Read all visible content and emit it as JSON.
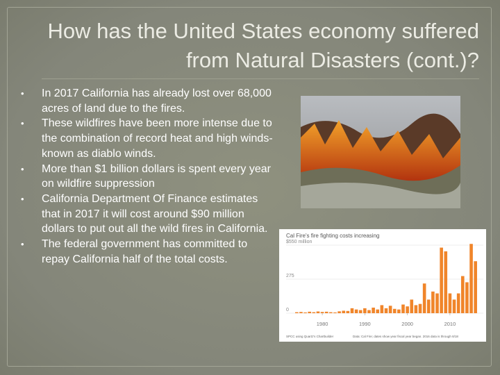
{
  "header": {
    "title": "How has the United States economy suffered from Natural Disasters (cont.)?"
  },
  "bullets": [
    "In 2017 California has already lost over 68,000 acres of land due to the fires.",
    "These wildfires have been more intense due to the combination of record heat and high winds- known as diablo winds.",
    "More than $1 billion dollars is spent every year on wildfire suppression",
    "California Department Of Finance estimates that  in 2017 it will cost around $90 million dollars to put out all the wild fires in California.",
    "The federal government has committed to repay California half of the total costs."
  ],
  "chart_data": {
    "type": "bar",
    "title": "Cal Fire's fire fighting costs increasing",
    "x": [
      1974,
      1975,
      1976,
      1977,
      1978,
      1979,
      1980,
      1981,
      1982,
      1983,
      1984,
      1985,
      1986,
      1987,
      1988,
      1989,
      1990,
      1991,
      1992,
      1993,
      1994,
      1995,
      1996,
      1997,
      1998,
      1999,
      2000,
      2001,
      2002,
      2003,
      2004,
      2005,
      2006,
      2007,
      2008,
      2009,
      2010,
      2011,
      2012,
      2013,
      2014,
      2015,
      2016
    ],
    "values": [
      8,
      10,
      6,
      12,
      8,
      14,
      10,
      12,
      8,
      6,
      15,
      20,
      18,
      40,
      30,
      25,
      40,
      25,
      45,
      30,
      65,
      40,
      60,
      35,
      30,
      70,
      55,
      110,
      65,
      75,
      240,
      110,
      175,
      160,
      530,
      500,
      160,
      110,
      160,
      300,
      250,
      560,
      420
    ],
    "color": "#f0852a",
    "xlim": [
      1971.5,
      2018.5
    ],
    "xticks": [
      1980,
      1990,
      2000,
      2010
    ],
    "ylim": [
      0,
      550
    ],
    "yticks": [
      {
        "value": 550,
        "label": "$550 million"
      },
      275,
      0
    ],
    "grid": true,
    "source_left": "SPCC using Quartz's Chartbuilder",
    "source_right": "Data: Cal Fire; dates show year fiscal year began. 2016 data is through 8/18"
  }
}
